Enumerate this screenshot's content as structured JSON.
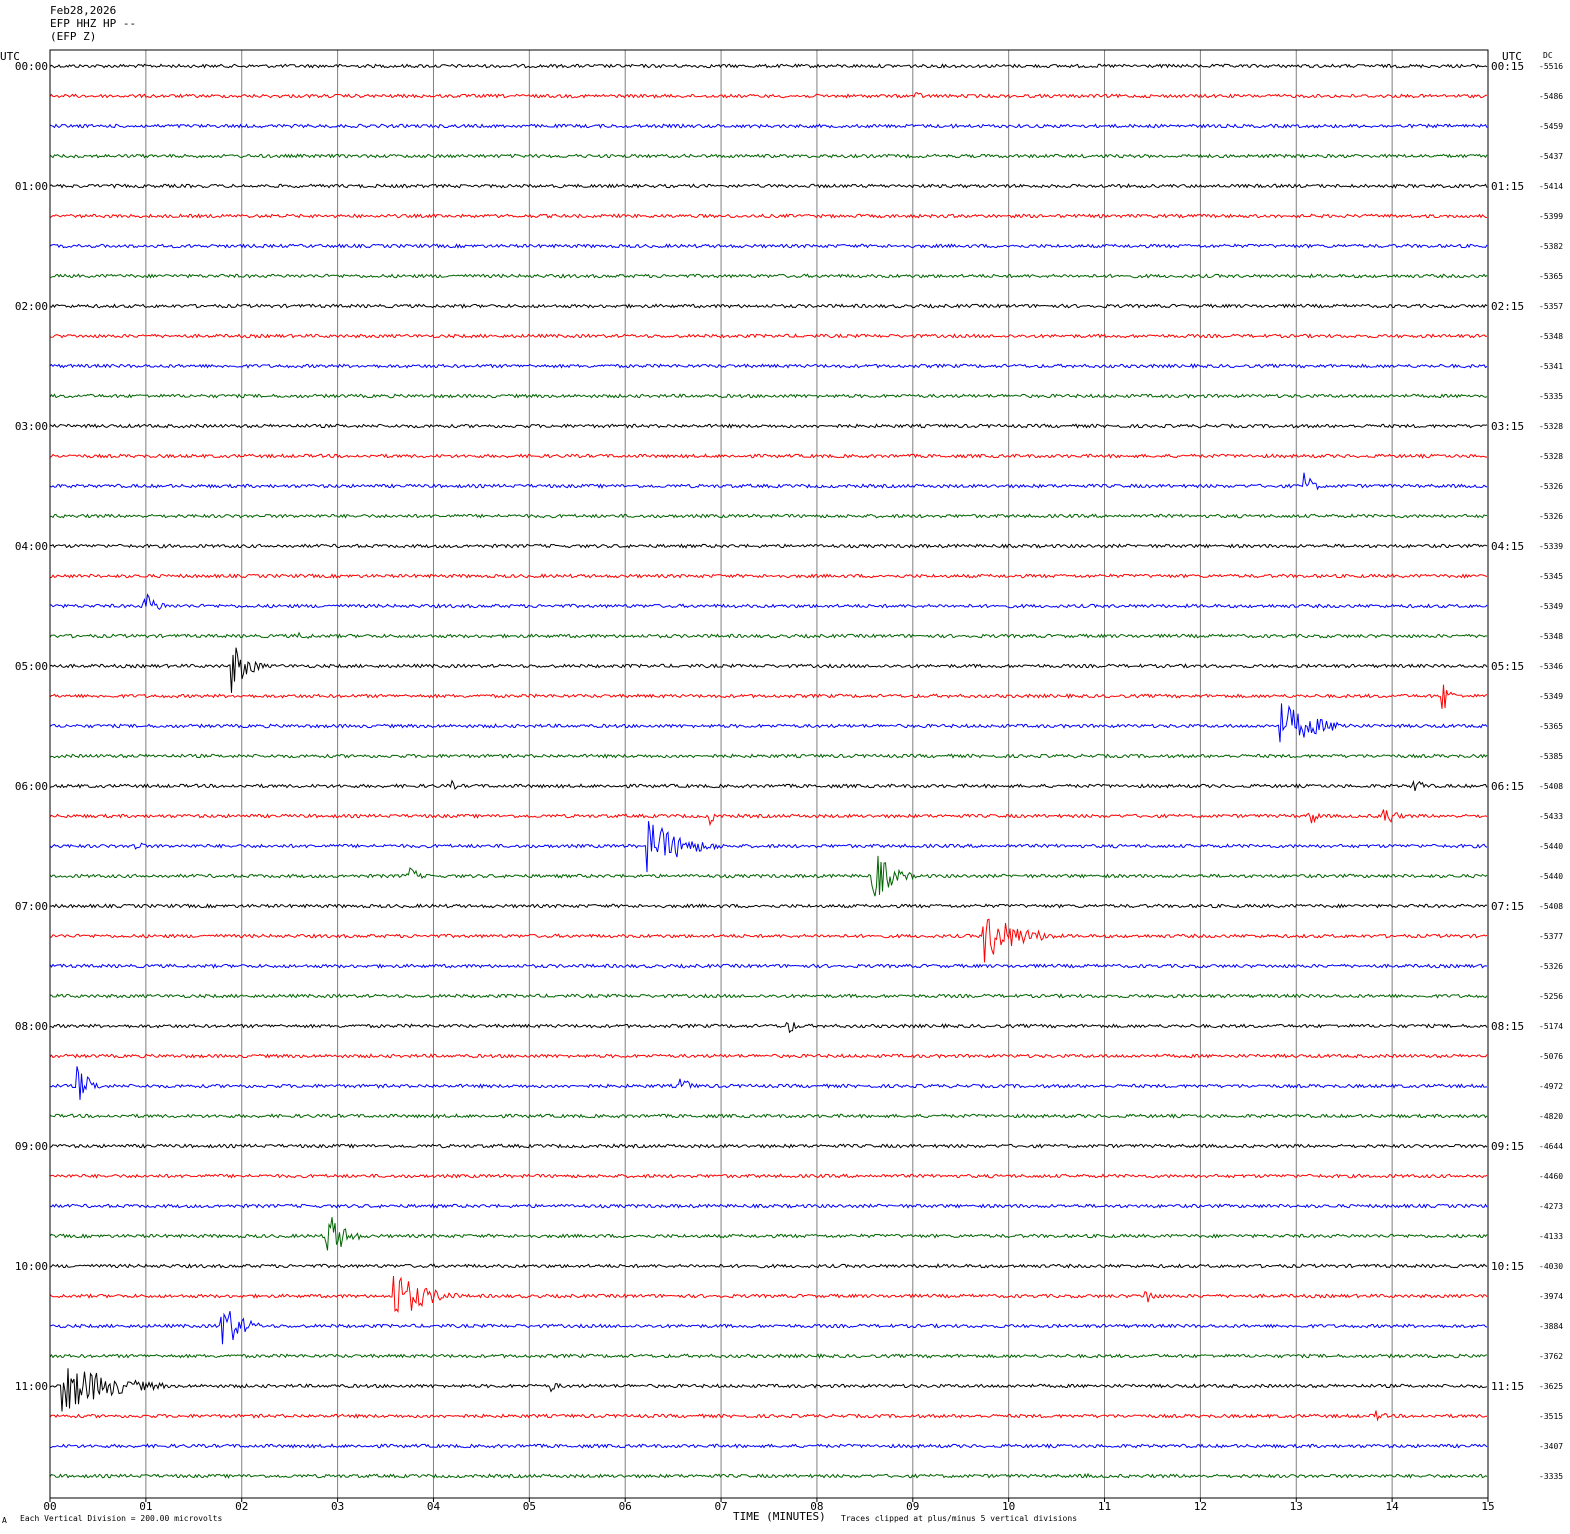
{
  "header": {
    "date": "Feb28,2026",
    "channel": "EFP HHZ HP --",
    "station": "(EFP Z)"
  },
  "left_axis_label": "UTC",
  "right_axis_label": "UTC",
  "dc_label": "DC",
  "footer": {
    "scale": "Each Vertical Division =  200.00 microvolts",
    "clip": "Traces clipped at plus/minus 5 vertical divisions",
    "corner_mark": "A"
  },
  "chart_data": {
    "type": "line",
    "title": "",
    "xlabel": "TIME (MINUTES)",
    "xlim": [
      0,
      15
    ],
    "x_ticks": [
      "00",
      "01",
      "02",
      "03",
      "04",
      "05",
      "06",
      "07",
      "08",
      "09",
      "10",
      "11",
      "12",
      "13",
      "14",
      "15"
    ],
    "trace_colors": [
      "#000000",
      "#ff0000",
      "#0000ff",
      "#006400"
    ],
    "left_labels": [
      "00:00",
      "01:00",
      "02:00",
      "03:00",
      "04:00",
      "05:00",
      "06:00",
      "07:00",
      "08:00",
      "09:00",
      "10:00",
      "11:00"
    ],
    "right_labels": [
      "00:15",
      "01:15",
      "02:15",
      "03:15",
      "04:15",
      "05:15",
      "06:15",
      "07:15",
      "08:15",
      "09:15",
      "10:15",
      "11:15"
    ],
    "dc_values": [
      "-5516",
      "-5486",
      "-5459",
      "-5437",
      "-5414",
      "-5399",
      "-5382",
      "-5365",
      "-5357",
      "-5348",
      "-5341",
      "-5335",
      "-5328",
      "-5328",
      "-5326",
      "-5326",
      "-5339",
      "-5345",
      "-5349",
      "-5348",
      "-5346",
      "-5349",
      "-5365",
      "-5385",
      "-5408",
      "-5433",
      "-5440",
      "-5440",
      "-5408",
      "-5377",
      "-5326",
      "-5256",
      "-5174",
      "-5076",
      "-4972",
      "-4820",
      "-4644",
      "-4460",
      "-4273",
      "-4133",
      "-4030",
      "-3974",
      "-3884",
      "-3762",
      "-3625",
      "-3515",
      "-3407",
      "-3335"
    ],
    "events": [
      {
        "trace": 1,
        "minute": 9.05,
        "amplitude": 0.7,
        "duration": 0.15
      },
      {
        "trace": 2,
        "minute": 9.4,
        "amplitude": 0.4,
        "duration": 0.5
      },
      {
        "trace": 14,
        "minute": 13.1,
        "amplitude": 2.3,
        "duration": 0.15
      },
      {
        "trace": 18,
        "minute": 1.0,
        "amplitude": 2.2,
        "duration": 0.25
      },
      {
        "trace": 19,
        "minute": 2.6,
        "amplitude": 0.6,
        "duration": 0.5
      },
      {
        "trace": 20,
        "minute": 1.9,
        "amplitude": 4.5,
        "duration": 0.3
      },
      {
        "trace": 21,
        "minute": 14.55,
        "amplitude": 2.5,
        "duration": 0.1
      },
      {
        "trace": 22,
        "minute": 12.85,
        "amplitude": 4.0,
        "duration": 0.7
      },
      {
        "trace": 24,
        "minute": 4.2,
        "amplitude": 0.9,
        "duration": 0.05
      },
      {
        "trace": 24,
        "minute": 14.25,
        "amplitude": 1.5,
        "duration": 0.15
      },
      {
        "trace": 25,
        "minute": 6.9,
        "amplitude": 1.5,
        "duration": 0.1
      },
      {
        "trace": 25,
        "minute": 13.15,
        "amplitude": 2.0,
        "duration": 0.1
      },
      {
        "trace": 25,
        "minute": 13.9,
        "amplitude": 2.5,
        "duration": 0.2
      },
      {
        "trace": 26,
        "minute": 0.9,
        "amplitude": 1.2,
        "duration": 0.1
      },
      {
        "trace": 26,
        "minute": 6.25,
        "amplitude": 4.5,
        "duration": 0.7
      },
      {
        "trace": 27,
        "minute": 3.75,
        "amplitude": 1.8,
        "duration": 0.15
      },
      {
        "trace": 27,
        "minute": 8.6,
        "amplitude": 4.5,
        "duration": 0.35
      },
      {
        "trace": 29,
        "minute": 9.75,
        "amplitude": 4.5,
        "duration": 0.7
      },
      {
        "trace": 32,
        "minute": 7.7,
        "amplitude": 1.5,
        "duration": 0.15
      },
      {
        "trace": 34,
        "minute": 0.3,
        "amplitude": 3.5,
        "duration": 0.2
      },
      {
        "trace": 34,
        "minute": 6.6,
        "amplitude": 1.6,
        "duration": 0.15
      },
      {
        "trace": 35,
        "minute": 14.8,
        "amplitude": 0.5,
        "duration": 0.3
      },
      {
        "trace": 39,
        "minute": 2.9,
        "amplitude": 4.5,
        "duration": 0.3
      },
      {
        "trace": 41,
        "minute": 3.6,
        "amplitude": 4.5,
        "duration": 0.6
      },
      {
        "trace": 41,
        "minute": 11.45,
        "amplitude": 1.4,
        "duration": 0.15
      },
      {
        "trace": 42,
        "minute": 1.8,
        "amplitude": 4.5,
        "duration": 0.35
      },
      {
        "trace": 44,
        "minute": 0.15,
        "amplitude": 4.5,
        "duration": 1.0
      },
      {
        "trace": 44,
        "minute": 5.25,
        "amplitude": 1.0,
        "duration": 0.1
      },
      {
        "trace": 45,
        "minute": 13.85,
        "amplitude": 1.0,
        "duration": 0.15
      },
      {
        "trace": 47,
        "minute": 10.8,
        "amplitude": 0.4,
        "duration": 0.5
      },
      {
        "trace": 47,
        "minute": 11.6,
        "amplitude": 0.3,
        "duration": 0.4
      }
    ]
  }
}
